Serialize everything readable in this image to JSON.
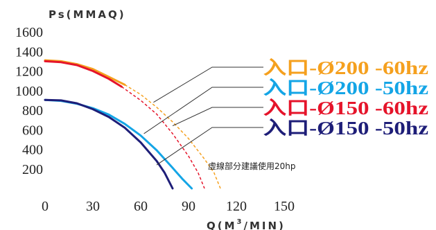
{
  "chart_data": {
    "type": "line",
    "ylabel": "Ps(MMAQ)",
    "xlabel_prefix": "Q(M",
    "xlabel_sup": "3",
    "xlabel_suffix": "/MIN)",
    "xlim": [
      0,
      150
    ],
    "ylim": [
      0,
      1600
    ],
    "x_ticks": [
      0,
      30,
      60,
      90,
      120,
      150
    ],
    "y_ticks": [
      200,
      400,
      600,
      800,
      1000,
      1200,
      1400,
      1600
    ],
    "grid": false,
    "note": "虛線部分建議使用20hp",
    "series": [
      {
        "name": "入口-Ø200 -60hz",
        "color": "#F5A01E",
        "solid": [
          [
            0,
            1310
          ],
          [
            10,
            1300
          ],
          [
            20,
            1270
          ],
          [
            30,
            1220
          ],
          [
            40,
            1140
          ],
          [
            50,
            1060
          ]
        ],
        "dashed": [
          [
            50,
            1060
          ],
          [
            60,
            960
          ],
          [
            70,
            830
          ],
          [
            80,
            680
          ],
          [
            90,
            510
          ],
          [
            100,
            300
          ],
          [
            106,
            160
          ],
          [
            110,
            0
          ]
        ]
      },
      {
        "name": "入口-Ø200 -50hz",
        "color": "#14A5E6",
        "solid": [
          [
            0,
            905
          ],
          [
            10,
            895
          ],
          [
            20,
            865
          ],
          [
            30,
            820
          ],
          [
            40,
            755
          ],
          [
            50,
            660
          ],
          [
            60,
            540
          ],
          [
            70,
            390
          ],
          [
            80,
            210
          ],
          [
            86,
            100
          ],
          [
            92,
            0
          ]
        ],
        "dashed": []
      },
      {
        "name": "入口-Ø150 -60hz",
        "color": "#E5142A",
        "solid": [
          [
            0,
            1300
          ],
          [
            10,
            1290
          ],
          [
            20,
            1260
          ],
          [
            30,
            1200
          ],
          [
            40,
            1120
          ],
          [
            48,
            1040
          ]
        ],
        "dashed": [
          [
            48,
            1040
          ],
          [
            60,
            900
          ],
          [
            70,
            760
          ],
          [
            80,
            560
          ],
          [
            90,
            330
          ],
          [
            96,
            160
          ],
          [
            100,
            0
          ]
        ]
      },
      {
        "name": "入口-Ø150 -50hz",
        "color": "#1E1E78",
        "solid": [
          [
            0,
            905
          ],
          [
            10,
            900
          ],
          [
            20,
            870
          ],
          [
            30,
            810
          ],
          [
            40,
            730
          ],
          [
            50,
            620
          ],
          [
            60,
            470
          ],
          [
            70,
            280
          ],
          [
            75,
            160
          ],
          [
            80,
            0
          ]
        ],
        "dashed": []
      }
    ]
  }
}
